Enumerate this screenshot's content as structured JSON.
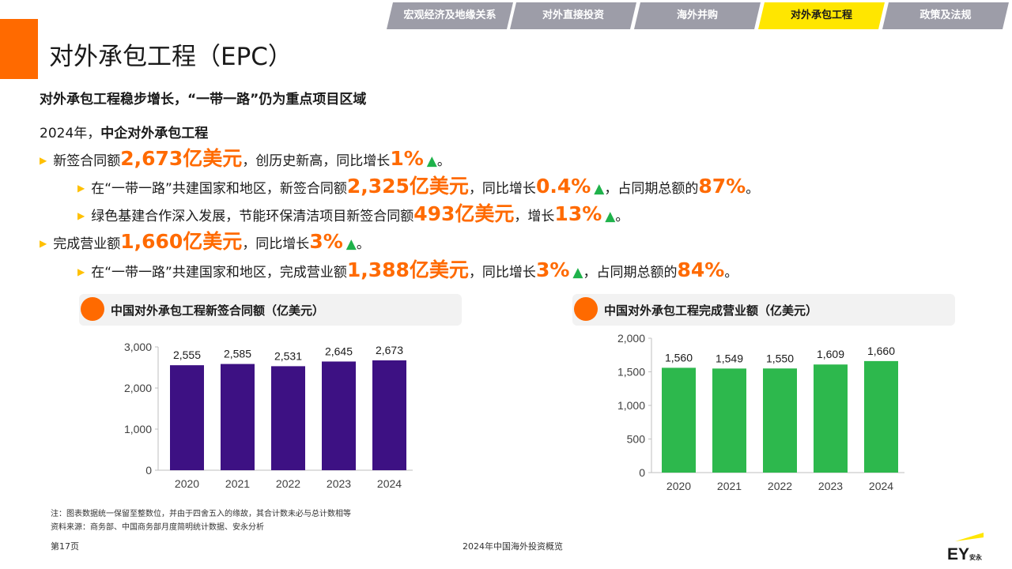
{
  "nav": {
    "tabs": [
      {
        "label": "宏观经济及地缘关系",
        "active": false
      },
      {
        "label": "对外直接投资",
        "active": false
      },
      {
        "label": "海外并购",
        "active": false
      },
      {
        "label": "对外承包工程",
        "active": true
      },
      {
        "label": "政策及法规",
        "active": false
      }
    ]
  },
  "header": {
    "title": "对外承包工程（EPC）",
    "subtitle": "对外承包工程稳步增长，“一带一路”仍为重点项目区域"
  },
  "intro": {
    "year": "2024年，",
    "topic": "中企对外承包工程"
  },
  "bullets": {
    "b1": {
      "pre": "新签合同额",
      "value": "2,673亿美元",
      "mid": "，创历史新高，同比增长",
      "pct": "1%",
      "arrow": "▲",
      "end": "。"
    },
    "b1a": {
      "pre": "在“一带一路”共建国家和地区，新签合同额",
      "value": "2,325亿美元",
      "mid": "，同比增长",
      "pct": "0.4%",
      "arrow": "▲",
      "mid2": "，占同期总额的",
      "share": "87%",
      "end": "。"
    },
    "b1b": {
      "pre": "绿色基建合作深入发展，节能环保清洁项目新签合同额",
      "value": "493亿美元",
      "mid": "，增长",
      "pct": "13%",
      "arrow": "▲",
      "end": "。"
    },
    "b2": {
      "pre": "完成营业额",
      "value": "1,660亿美元",
      "mid": "，同比增长",
      "pct": "3%",
      "arrow": "▲",
      "end": "。"
    },
    "b2a": {
      "pre": "在“一带一路”共建国家和地区，完成营业额",
      "value": "1,388亿美元",
      "mid": "，同比增长",
      "pct": "3%",
      "arrow": "▲",
      "mid2": "，占同期总额的",
      "share": "84%",
      "end": "。"
    }
  },
  "chart_data": [
    {
      "type": "bar",
      "title": "中国对外承包工程新签合同额（亿美元）",
      "categories": [
        "2020",
        "2021",
        "2022",
        "2023",
        "2024"
      ],
      "values": [
        2555,
        2585,
        2531,
        2645,
        2673
      ],
      "value_labels": [
        "2,555",
        "2,585",
        "2,531",
        "2,645",
        "2,673"
      ],
      "ylim": [
        0,
        3000
      ],
      "yticks": [
        0,
        1000,
        2000,
        3000
      ],
      "ytick_labels": [
        "0",
        "1,000",
        "2,000",
        "3,000"
      ],
      "color": "#3d1183",
      "grid": false,
      "legend": "none"
    },
    {
      "type": "bar",
      "title": "中国对外承包工程完成营业额（亿美元）",
      "categories": [
        "2020",
        "2021",
        "2022",
        "2023",
        "2024"
      ],
      "values": [
        1560,
        1549,
        1550,
        1609,
        1660
      ],
      "value_labels": [
        "1,560",
        "1,549",
        "1,550",
        "1,609",
        "1,660"
      ],
      "ylim": [
        0,
        2000
      ],
      "yticks": [
        0,
        500,
        1000,
        1500,
        2000
      ],
      "ytick_labels": [
        "0",
        "500",
        "1,000",
        "1,500",
        "2,000"
      ],
      "color": "#2db84d",
      "grid": false,
      "legend": "none"
    }
  ],
  "notes": {
    "note": "注：图表数据统一保留至整数位，并由于四舍五入的缘故，其合计数未必与总计数相等",
    "source": "资料来源：商务部、中国商务部月度简明统计数据、安永分析"
  },
  "footer": {
    "page": "第17页",
    "center": "2024年中国海外投资概览"
  },
  "logo": {
    "text": "EY",
    "sub": "安永",
    "accent": "#ffe600"
  }
}
